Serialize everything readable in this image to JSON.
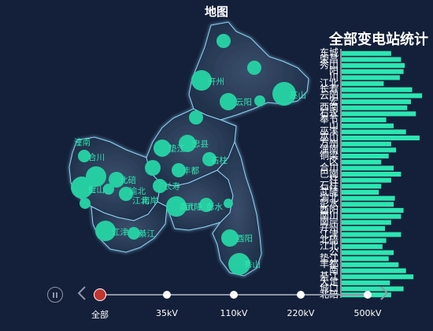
{
  "map": {
    "title": "地图",
    "region_color": "#2a3f5c",
    "border_color": "#8fd3f4",
    "bubble_color": "#26d5a6",
    "labels": [
      "开州",
      "云阳",
      "巫山",
      "垫江",
      "忠县",
      "石柱",
      "北碚",
      "丰都",
      "合川",
      "渝北",
      "长寿",
      "江北",
      "璧山",
      "南岸",
      "南川",
      "武隆",
      "彭水",
      "酉阳",
      "秀山",
      "江津",
      "綦江",
      "潼南"
    ]
  },
  "chart": {
    "title": "全部变电站统计",
    "bar_color": "#2de6b2"
  },
  "chart_data": {
    "type": "bar",
    "orientation": "horizontal",
    "title": "全部变电站统计",
    "categories": [
      "东城",
      "荣昌",
      "秀山",
      "阳",
      "川",
      "江北",
      "长寿",
      "云阳",
      "宏",
      "西南",
      "石永",
      "奉节",
      "山",
      "巫溪",
      "巫山",
      "万州",
      "潼南",
      "铜梁",
      "区",
      "合川",
      "巴南",
      "柱",
      "石柱",
      "武隆",
      "渝北",
      "彭水",
      "酉阳",
      "南川",
      "南岸",
      "开州",
      "江津",
      "北碚",
      "江北",
      "公",
      "垫江",
      "丰都",
      "南",
      "綦江",
      "大足",
      "城口",
      "北碚"
    ],
    "values": [
      40,
      48,
      51,
      50,
      47,
      34,
      57,
      65,
      56,
      53,
      60,
      36,
      42,
      52,
      63,
      40,
      44,
      38,
      32,
      42,
      48,
      40,
      32,
      30,
      43,
      42,
      50,
      48,
      40,
      35,
      48,
      36,
      33,
      42,
      38,
      46,
      52,
      58,
      39,
      50,
      40
    ],
    "xlim": [
      0,
      70
    ],
    "legend": "none"
  },
  "timeline": {
    "items": [
      "全部",
      "35kV",
      "110kV",
      "220kV",
      "500kV"
    ],
    "active_index": 0,
    "active_color": "#c23531",
    "line_color": "#8d96a6"
  }
}
